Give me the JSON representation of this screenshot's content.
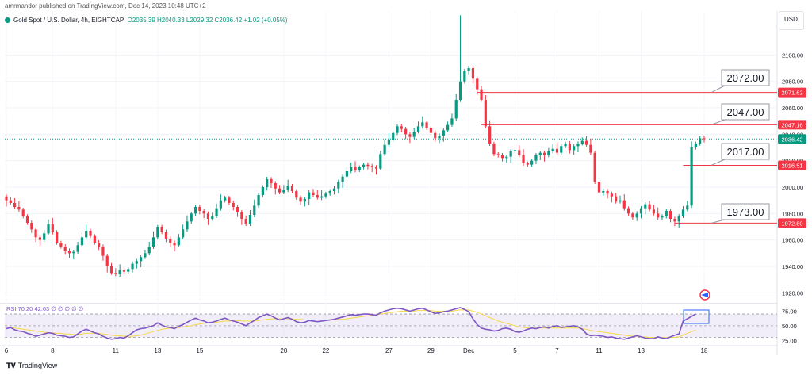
{
  "header": {
    "publish_line": "amrmandor published on TradingView.com, Dec 14, 2023 10:48 UTC+2",
    "symbol": "Gold Spot / U.S. Dollar, 4h, EIGHTCAP",
    "ohlc": "O2035.39 H2040.33 L2029.32 C2036.42 +1.02 (+0.05%)",
    "currency": "USD"
  },
  "footer": {
    "brand": "TradingView"
  },
  "colors": {
    "up": "#089981",
    "down": "#f23645",
    "rsi": "#7e57c2",
    "rsi_ma": "#f7d74a",
    "level_line": "#f23645"
  },
  "chart_data": [
    {
      "type": "candlestick",
      "title": "Gold Spot / U.S. Dollar, 4h, EIGHTCAP",
      "ylabel": "USD",
      "ylim": [
        1913,
        2132
      ],
      "y_ticks": [
        1920,
        1940,
        1960,
        1980,
        2000,
        2020,
        2040,
        2060,
        2080,
        2100
      ],
      "x_ticks": [
        "6",
        "8",
        "11",
        "13",
        "15",
        "20",
        "22",
        "27",
        "29",
        "Dec",
        "5",
        "7",
        "11",
        "13",
        "18"
      ],
      "last_price": 2036.42,
      "price_labels": [
        2071.62,
        2047.16,
        2036.42,
        2016.51,
        1972.8
      ],
      "annotations": [
        "2072.00",
        "2047.00",
        "2017.00",
        "1973.00"
      ],
      "candles_close": [
        1990,
        1988,
        1985,
        1983,
        1978,
        1973,
        1968,
        1962,
        1960,
        1965,
        1972,
        1966,
        1958,
        1955,
        1952,
        1950,
        1951,
        1956,
        1962,
        1967,
        1963,
        1958,
        1955,
        1948,
        1940,
        1935,
        1934,
        1937,
        1936,
        1938,
        1942,
        1944,
        1947,
        1950,
        1955,
        1962,
        1970,
        1966,
        1961,
        1958,
        1956,
        1962,
        1968,
        1974,
        1980,
        1985,
        1982,
        1980,
        1976,
        1978,
        1984,
        1990,
        1992,
        1988,
        1985,
        1981,
        1976,
        1972,
        1979,
        1986,
        1994,
        2000,
        2006,
        2003,
        1999,
        1996,
        1998,
        2001,
        1997,
        1992,
        1989,
        1991,
        1996,
        1994,
        1992,
        1993,
        1995,
        1997,
        1999,
        2004,
        2008,
        2012,
        2015,
        2013,
        2015,
        2017,
        2016,
        2015,
        2014,
        2025,
        2032,
        2036,
        2041,
        2046,
        2044,
        2040,
        2038,
        2042,
        2046,
        2049,
        2045,
        2041,
        2037,
        2039,
        2043,
        2047,
        2052,
        2066,
        2080,
        2088,
        2090,
        2082,
        2074,
        2066,
        2046,
        2033,
        2025,
        2024,
        2022,
        2023,
        2027,
        2028,
        2024,
        2018,
        2017,
        2020,
        2024,
        2026,
        2024,
        2027,
        2029,
        2026,
        2031,
        2033,
        2028,
        2031,
        2033,
        2035,
        2032,
        2026,
        2004,
        1996,
        1997,
        1995,
        1993,
        1989,
        1990,
        1984,
        1980,
        1977,
        1980,
        1984,
        1987,
        1983,
        1980,
        1977,
        1978,
        1982,
        1976,
        1974,
        1978,
        1983,
        1986,
        2030,
        2033,
        2037,
        2036.42
      ],
      "markers": [
        "rocket-icon"
      ]
    },
    {
      "type": "line",
      "title": "RSI",
      "legend": [
        "RSI 70.20 42.63 ∅ ∅ ∅ ∅ ∅"
      ],
      "ylim": [
        20,
        85
      ],
      "y_ticks": [
        25.0,
        50.0,
        75.0
      ],
      "band": [
        30,
        70
      ],
      "series": [
        {
          "name": "RSI",
          "values": [
            45,
            47,
            43,
            41,
            40,
            37,
            35,
            32,
            34,
            36,
            38,
            37,
            34,
            33,
            32,
            30,
            31,
            36,
            41,
            44,
            41,
            38,
            36,
            32,
            29,
            27,
            28,
            30,
            29,
            33,
            38,
            43,
            45,
            46,
            48,
            50,
            55,
            51,
            48,
            47,
            45,
            49,
            52,
            56,
            60,
            63,
            60,
            58,
            55,
            56,
            58,
            61,
            63,
            60,
            58,
            56,
            53,
            50,
            55,
            59,
            64,
            67,
            70,
            67,
            63,
            60,
            62,
            64,
            61,
            57,
            55,
            56,
            59,
            58,
            57,
            58,
            59,
            60,
            61,
            63,
            65,
            67,
            69,
            68,
            69,
            70,
            70,
            69,
            68,
            72,
            75,
            77,
            79,
            80,
            79,
            77,
            75,
            77,
            79,
            80,
            77,
            74,
            71,
            72,
            74,
            75,
            77,
            79,
            81,
            78,
            74,
            62,
            52,
            46,
            44,
            43,
            41,
            42,
            45,
            46,
            44,
            40,
            39,
            41,
            44,
            46,
            45,
            47,
            48,
            46,
            49,
            50,
            47,
            48,
            49,
            50,
            48,
            44,
            36,
            33,
            34,
            33,
            32,
            30,
            31,
            29,
            28,
            27,
            29,
            31,
            33,
            31,
            29,
            28,
            28,
            31,
            29,
            28,
            31,
            34,
            36,
            58,
            62,
            66,
            70.2
          ]
        },
        {
          "name": "MA",
          "values": [
            48,
            47,
            46,
            45,
            44,
            43,
            42,
            41,
            40,
            39,
            38,
            38,
            37,
            37,
            36,
            36,
            35,
            35,
            36,
            37,
            37,
            37,
            37,
            36,
            35,
            34,
            33,
            33,
            32,
            32,
            32,
            33,
            34,
            36,
            38,
            40,
            42,
            44,
            45,
            46,
            47,
            47,
            48,
            49,
            50,
            52,
            53,
            54,
            55,
            55,
            56,
            57,
            58,
            58,
            59,
            59,
            58,
            58,
            58,
            58,
            59,
            60,
            61,
            62,
            62,
            62,
            62,
            62,
            62,
            61,
            61,
            60,
            60,
            60,
            60,
            60,
            60,
            60,
            60,
            61,
            61,
            62,
            63,
            64,
            65,
            66,
            67,
            68,
            69,
            70,
            71,
            72,
            73,
            74,
            75,
            75,
            75,
            75,
            76,
            76,
            76,
            76,
            75,
            75,
            75,
            75,
            75,
            76,
            77,
            77,
            77,
            75,
            73,
            70,
            67,
            64,
            61,
            58,
            56,
            54,
            52,
            50,
            48,
            47,
            46,
            46,
            46,
            46,
            46,
            46,
            46,
            46,
            46,
            46,
            46,
            46,
            46,
            45,
            44,
            42,
            41,
            40,
            39,
            38,
            37,
            36,
            35,
            34,
            33,
            32,
            32,
            31,
            31,
            30,
            30,
            30,
            30,
            30,
            30,
            30,
            31,
            34,
            37,
            40,
            42.63
          ]
        }
      ]
    }
  ]
}
